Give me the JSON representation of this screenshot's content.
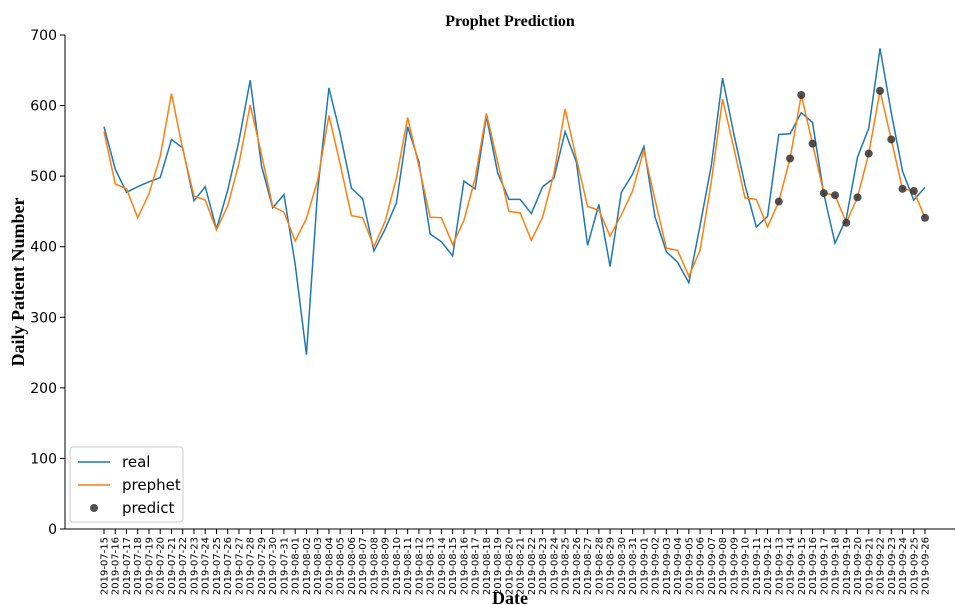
{
  "chart_data": {
    "type": "line",
    "title": "Prophet Prediction",
    "xlabel": "Date",
    "ylabel": "Daily Patient Number",
    "categories": [
      "2019-07-15",
      "2019-07-16",
      "2019-07-17",
      "2019-07-18",
      "2019-07-19",
      "2019-07-20",
      "2019-07-21",
      "2019-07-22",
      "2019-07-23",
      "2019-07-24",
      "2019-07-25",
      "2019-07-26",
      "2019-07-27",
      "2019-07-28",
      "2019-07-29",
      "2019-07-30",
      "2019-07-31",
      "2019-08-01",
      "2019-08-02",
      "2019-08-03",
      "2019-08-04",
      "2019-08-05",
      "2019-08-06",
      "2019-08-07",
      "2019-08-08",
      "2019-08-09",
      "2019-08-10",
      "2019-08-11",
      "2019-08-12",
      "2019-08-13",
      "2019-08-14",
      "2019-08-15",
      "2019-08-16",
      "2019-08-17",
      "2019-08-18",
      "2019-08-19",
      "2019-08-20",
      "2019-08-21",
      "2019-08-22",
      "2019-08-23",
      "2019-08-24",
      "2019-08-25",
      "2019-08-26",
      "2019-08-27",
      "2019-08-28",
      "2019-08-29",
      "2019-08-30",
      "2019-08-31",
      "2019-09-01",
      "2019-09-02",
      "2019-09-03",
      "2019-09-04",
      "2019-09-05",
      "2019-09-06",
      "2019-09-07",
      "2019-09-08",
      "2019-09-09",
      "2019-09-10",
      "2019-09-11",
      "2019-09-12",
      "2019-09-13",
      "2019-09-14",
      "2019-09-15",
      "2019-09-16",
      "2019-09-17",
      "2019-09-18",
      "2019-09-19",
      "2019-09-20",
      "2019-09-21",
      "2019-09-22",
      "2019-09-23",
      "2019-09-24",
      "2019-09-25",
      "2019-09-26"
    ],
    "series": [
      {
        "name": "real",
        "type": "line",
        "color": "#1f77b4",
        "values": [
          570,
          510,
          477,
          485,
          492,
          498,
          552,
          540,
          465,
          485,
          425,
          480,
          550,
          636,
          515,
          455,
          474,
          375,
          247,
          480,
          625,
          560,
          483,
          468,
          394,
          425,
          462,
          570,
          520,
          418,
          407,
          387,
          493,
          482,
          585,
          505,
          467,
          467,
          447,
          485,
          497,
          563,
          520,
          402,
          460,
          372,
          477,
          503,
          542,
          442,
          393,
          378,
          349,
          430,
          515,
          639,
          560,
          487,
          428,
          443,
          559,
          560,
          590,
          576,
          475,
          405,
          440,
          527,
          568,
          681,
          590,
          507,
          466,
          484
        ]
      },
      {
        "name": "prephet",
        "type": "line",
        "color": "#ff7f0e",
        "values": [
          563,
          489,
          482,
          441,
          475,
          528,
          617,
          538,
          472,
          466,
          424,
          458,
          518,
          601,
          531,
          457,
          449,
          408,
          440,
          494,
          586,
          517,
          444,
          441,
          400,
          436,
          497,
          583,
          514,
          442,
          441,
          403,
          437,
          497,
          589,
          520,
          450,
          448,
          409,
          442,
          503,
          595,
          525,
          457,
          452,
          415,
          445,
          479,
          537,
          466,
          398,
          395,
          358,
          395,
          492,
          609,
          540,
          469,
          467,
          428,
          464,
          525,
          615,
          546,
          476,
          473,
          434,
          470,
          532,
          621,
          552,
          482,
          479,
          441
        ]
      },
      {
        "name": "predict",
        "type": "scatter",
        "color": "#333333",
        "values": [
          null,
          null,
          null,
          null,
          null,
          null,
          null,
          null,
          null,
          null,
          null,
          null,
          null,
          null,
          null,
          null,
          null,
          null,
          null,
          null,
          null,
          null,
          null,
          null,
          null,
          null,
          null,
          null,
          null,
          null,
          null,
          null,
          null,
          null,
          null,
          null,
          null,
          null,
          null,
          null,
          null,
          null,
          null,
          null,
          null,
          null,
          null,
          null,
          null,
          null,
          null,
          null,
          null,
          null,
          null,
          null,
          null,
          null,
          null,
          null,
          464,
          525,
          615,
          546,
          476,
          473,
          434,
          470,
          532,
          621,
          552,
          482,
          479,
          441
        ]
      }
    ],
    "ylim": [
      0,
      700
    ],
    "yticks": [
      0,
      100,
      200,
      300,
      400,
      500,
      600,
      700
    ],
    "legend": "lower left"
  }
}
